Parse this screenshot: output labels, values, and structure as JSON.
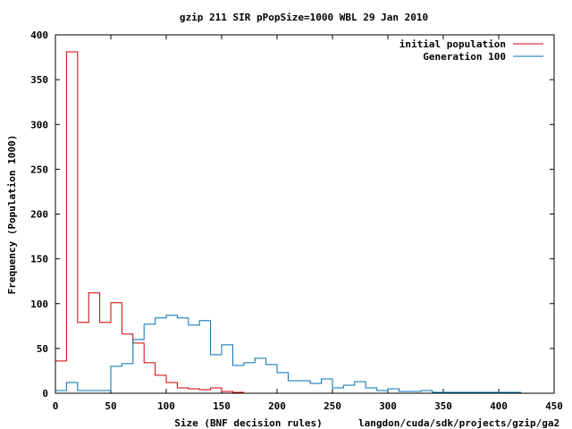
{
  "chart_data": {
    "type": "line",
    "title": "gzip 211 SIR pPopSize=1000 WBL 29 Jan 2010",
    "xlabel": "Size (BNF decision rules)",
    "ylabel": "Frequency (Population 1000)",
    "footer_text": "langdon/cuda/sdk/projects/gzip/ga2",
    "xlim": [
      0,
      450
    ],
    "ylim": [
      0,
      400
    ],
    "x_ticks": [
      "0",
      "50",
      "100",
      "150",
      "200",
      "250",
      "300",
      "350",
      "400",
      "450"
    ],
    "y_ticks": [
      "0",
      "50",
      "100",
      "150",
      "200",
      "250",
      "300",
      "350",
      "400"
    ],
    "legend_position": "top-right",
    "series": [
      {
        "name": "initial population",
        "color": "#cc0000",
        "style": "steps",
        "x": [
          0,
          10,
          20,
          30,
          40,
          50,
          60,
          70,
          80,
          90,
          100,
          110,
          120,
          130,
          140,
          150,
          160,
          170
        ],
        "y": [
          36,
          381,
          79,
          112,
          79,
          101,
          66,
          56,
          34,
          20,
          12,
          6,
          5,
          4,
          6,
          2,
          1,
          0
        ]
      },
      {
        "name": "Generation 100",
        "color": "#0070b0",
        "style": "steps",
        "x": [
          0,
          10,
          20,
          30,
          40,
          50,
          60,
          70,
          80,
          90,
          100,
          110,
          120,
          130,
          140,
          150,
          160,
          170,
          180,
          190,
          200,
          210,
          220,
          230,
          240,
          250,
          260,
          270,
          280,
          290,
          300,
          310,
          320,
          330,
          340,
          350,
          360,
          370,
          380,
          390,
          400,
          410,
          420
        ],
        "y": [
          3,
          12,
          3,
          3,
          3,
          30,
          33,
          60,
          77,
          84,
          87,
          84,
          76,
          81,
          43,
          54,
          31,
          34,
          39,
          32,
          23,
          14,
          14,
          11,
          16,
          6,
          9,
          13,
          6,
          3,
          5,
          2,
          2,
          3,
          1,
          1,
          1,
          1,
          1,
          1,
          1,
          1,
          0
        ]
      }
    ]
  }
}
